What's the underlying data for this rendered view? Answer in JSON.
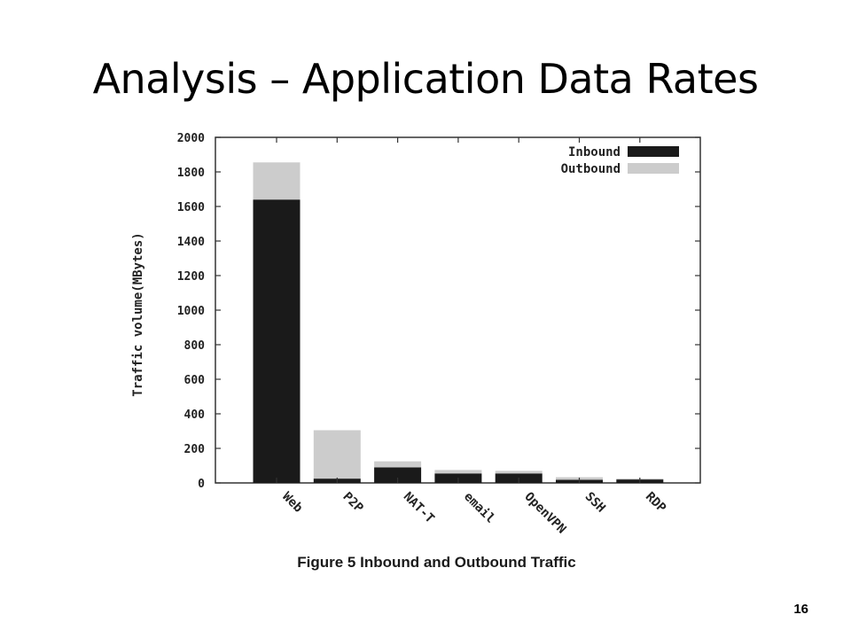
{
  "slide": {
    "title": "Analysis – Application Data Rates",
    "caption": "Figure 5  Inbound and Outbound Traffic",
    "page_number": "16"
  },
  "chart_data": {
    "type": "bar",
    "stacked": true,
    "categories": [
      "Web",
      "P2P",
      "NAT-T",
      "email",
      "OpenVPN",
      "SSH",
      "RDP"
    ],
    "series": [
      {
        "name": "Inbound",
        "color": "#1a1a1a",
        "values": [
          1640,
          25,
          90,
          55,
          55,
          18,
          20
        ]
      },
      {
        "name": "Outbound",
        "color": "#cccccc",
        "values": [
          215,
          280,
          35,
          20,
          15,
          15,
          5
        ]
      }
    ],
    "ylabel": "Traffic volume(MBytes)",
    "xlabel": "",
    "ylim": [
      0,
      2000
    ],
    "yticks": [
      "0",
      "200",
      "400",
      "600",
      "800",
      "1000",
      "1200",
      "1400",
      "1600",
      "1800",
      "2000"
    ],
    "grid": false,
    "legend_position": "top-right"
  }
}
